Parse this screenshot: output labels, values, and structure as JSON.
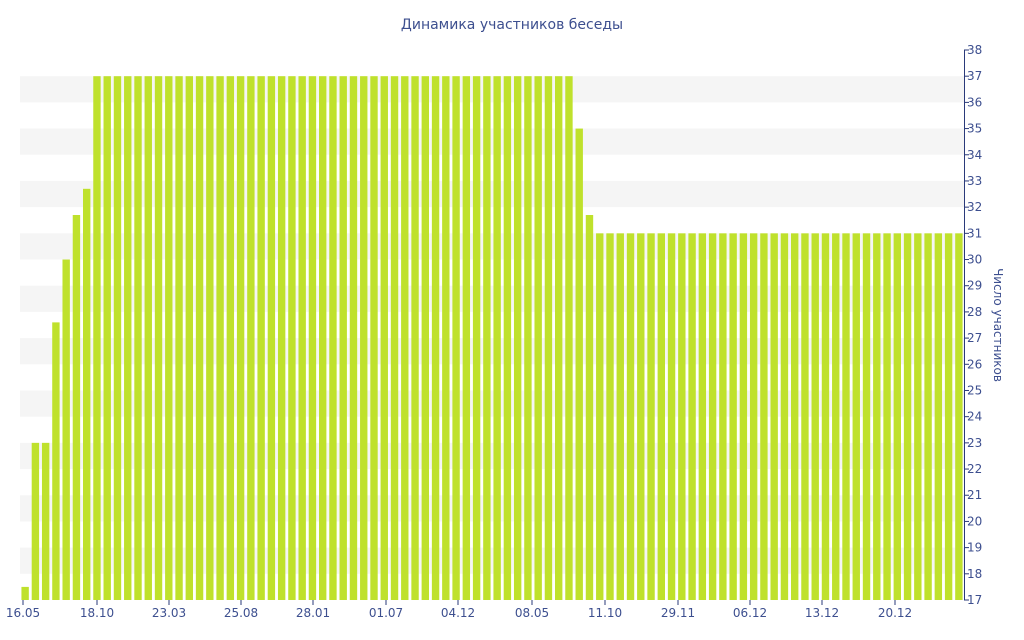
{
  "colors": {
    "bar": "#bfe12c",
    "band": "#f5f5f5",
    "text": "#3d4f8f",
    "axis": "#2a3a7a"
  },
  "chart_data": {
    "type": "bar",
    "title": "Динамика участников беседы",
    "xlabel": "",
    "ylabel": "Число участников",
    "ylim": [
      17,
      38
    ],
    "y_ticks": [
      17,
      18,
      19,
      20,
      21,
      22,
      23,
      24,
      25,
      26,
      27,
      28,
      29,
      30,
      31,
      32,
      33,
      34,
      35,
      36,
      37,
      38
    ],
    "x_tick_labels": [
      "16.05",
      "18.10",
      "23.03",
      "25.08",
      "28.01",
      "01.07",
      "04.12",
      "08.05",
      "11.10",
      "29.11",
      "06.12",
      "13.12",
      "20.12"
    ],
    "grid": "horizontal bands",
    "legend": "none",
    "values": [
      17.5,
      23,
      23,
      27.6,
      30,
      31.7,
      32.7,
      37,
      37,
      37,
      37,
      37,
      37,
      37,
      37,
      37,
      37,
      37,
      37,
      37,
      37,
      37,
      37,
      37,
      37,
      37,
      37,
      37,
      37,
      37,
      37,
      37,
      37,
      37,
      37,
      37,
      37,
      37,
      37,
      37,
      37,
      37,
      37,
      37,
      37,
      37,
      37,
      37,
      37,
      37,
      37,
      37,
      37,
      37,
      35,
      31.7,
      31,
      31,
      31,
      31,
      31,
      31,
      31,
      31,
      31,
      31,
      31,
      31,
      31,
      31,
      31,
      31,
      31,
      31,
      31,
      31,
      31,
      31,
      31,
      31,
      31,
      31,
      31,
      31,
      31,
      31,
      31,
      31,
      31,
      31,
      31,
      31
    ]
  }
}
